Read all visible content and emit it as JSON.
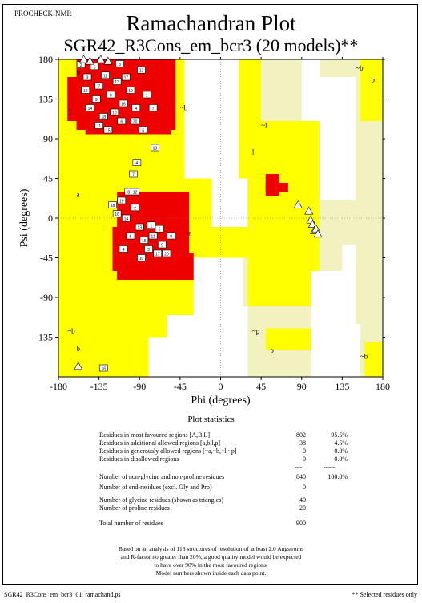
{
  "header": {
    "program": "PROCHECK-NMR",
    "title": "Ramachandran Plot",
    "subtitle": "SGR42_R3Cons_em_bcr3 (20 models)**"
  },
  "chart_data": {
    "type": "scatter",
    "xlabel": "Phi (degrees)",
    "ylabel": "Psi (degrees)",
    "xlim": [
      -180,
      180
    ],
    "ylim": [
      -180,
      180
    ],
    "xticks": [
      "-180",
      "-135",
      "-90",
      "-45",
      "0",
      "45",
      "90",
      "135",
      "180"
    ],
    "yticks": [
      "180",
      "135",
      "90",
      "45",
      "0",
      "-45",
      "-90",
      "-135"
    ],
    "region_labels": [
      {
        "text": "b",
        "phi": -160,
        "psi": 165
      },
      {
        "text": "l",
        "phi": -168,
        "psi": 120
      },
      {
        "text": "~b",
        "phi": -45,
        "psi": 125
      },
      {
        "text": "a",
        "phi": -160,
        "psi": 27
      },
      {
        "text": "~a",
        "phi": -40,
        "psi": -17
      },
      {
        "text": "~l",
        "phi": 45,
        "psi": 105
      },
      {
        "text": "l",
        "phi": 35,
        "psi": 75
      },
      {
        "text": "~b",
        "phi": -170,
        "psi": -128
      },
      {
        "text": "b",
        "phi": -160,
        "psi": -148
      },
      {
        "text": "~p",
        "phi": 35,
        "psi": -128
      },
      {
        "text": "p",
        "phi": 55,
        "psi": -150
      },
      {
        "text": "~b",
        "phi": 150,
        "psi": 170
      },
      {
        "text": "b",
        "phi": 167,
        "psi": 157
      },
      {
        "text": "~b",
        "phi": 155,
        "psi": -157
      }
    ],
    "regions": {
      "generous": [
        [
          -180,
          180,
          -30,
          180
        ],
        [
          -180,
          -70,
          -30,
          -180
        ],
        [
          -180,
          -100,
          -160,
          -180
        ],
        [
          150,
          180,
          -180,
          180
        ],
        [
          25,
          135,
          -180,
          180
        ],
        [
          0,
          25,
          -30,
          30
        ],
        [
          -30,
          0,
          -45,
          45
        ],
        [
          20,
          90,
          -100,
          -180
        ],
        [
          130,
          150,
          -100,
          -160
        ]
      ],
      "allowed": [
        [
          -180,
          45,
          -45,
          180
        ],
        [
          -180,
          -30,
          -180,
          45
        ],
        [
          -180,
          -55,
          -180,
          -110
        ],
        [
          -155,
          -90,
          -125,
          -180
        ],
        [
          30,
          110,
          -100,
          110
        ],
        [
          50,
          100,
          -125,
          -150
        ],
        [
          155,
          180,
          110,
          180
        ],
        [
          160,
          180,
          -140,
          -180
        ]
      ],
      "disallowed": [
        [
          -40,
          20,
          45,
          180
        ],
        [
          -10,
          30,
          -10,
          45
        ],
        [
          -20,
          30,
          -100,
          -180
        ],
        [
          -60,
          -20,
          -110,
          -180
        ],
        [
          100,
          150,
          -60,
          -180
        ],
        [
          -80,
          -60,
          -180,
          -135
        ],
        [
          110,
          150,
          20,
          160
        ],
        [
          130,
          155,
          -180,
          -120
        ],
        [
          90,
          110,
          110,
          180
        ],
        [
          -40,
          -20,
          180,
          60
        ]
      ],
      "favoured": [
        [
          -160,
          -50,
          180,
          100
        ],
        [
          -170,
          -60,
          160,
          110
        ],
        [
          -150,
          -55,
          140,
          95
        ],
        [
          -115,
          -35,
          30,
          -70
        ],
        [
          -100,
          -40,
          10,
          -40
        ],
        [
          -120,
          -60,
          -10,
          -60
        ],
        [
          -80,
          -30,
          -40,
          -70
        ],
        [
          50,
          65,
          50,
          25
        ],
        [
          50,
          75,
          40,
          30
        ]
      ]
    },
    "points": [
      {
        "phi": -155,
        "psi": 174,
        "model": "2"
      },
      {
        "phi": -148,
        "psi": 160,
        "model": "3"
      },
      {
        "phi": -140,
        "psi": 172,
        "model": "5"
      },
      {
        "phi": -135,
        "psi": 150,
        "model": "7"
      },
      {
        "phi": -128,
        "psi": 162,
        "model": "11"
      },
      {
        "phi": -122,
        "psi": 140,
        "model": "8"
      },
      {
        "phi": -115,
        "psi": 155,
        "model": "13"
      },
      {
        "phi": -108,
        "psi": 130,
        "model": "16"
      },
      {
        "phi": -100,
        "psi": 145,
        "model": "19"
      },
      {
        "phi": -94,
        "psi": 125,
        "model": "4"
      },
      {
        "phi": -88,
        "psi": 168,
        "model": "12"
      },
      {
        "phi": -145,
        "psi": 125,
        "model": "14"
      },
      {
        "phi": -138,
        "psi": 135,
        "model": "9"
      },
      {
        "phi": -130,
        "psi": 115,
        "model": "18"
      },
      {
        "phi": -118,
        "psi": 120,
        "model": "10"
      },
      {
        "phi": -110,
        "psi": 110,
        "model": "6"
      },
      {
        "phi": -125,
        "psi": 100,
        "model": "15"
      },
      {
        "phi": -105,
        "psi": 160,
        "model": "17"
      },
      {
        "phi": -95,
        "psi": 110,
        "model": "20"
      },
      {
        "phi": -82,
        "psi": 140,
        "model": "1"
      },
      {
        "phi": -150,
        "psi": 145,
        "model": "12"
      },
      {
        "phi": -112,
        "psi": 175,
        "model": "3"
      },
      {
        "phi": -75,
        "psi": 125,
        "model": "7"
      },
      {
        "phi": -135,
        "psi": 105,
        "model": "11"
      },
      {
        "phi": -86,
        "psi": 100,
        "model": "5"
      },
      {
        "phi": -73,
        "psi": 80,
        "model": "18"
      },
      {
        "phi": -93,
        "psi": 63,
        "model": "4"
      },
      {
        "phi": -97,
        "psi": 50,
        "model": "7"
      },
      {
        "phi": -102,
        "psi": 30,
        "model": "8"
      },
      {
        "phi": -110,
        "psi": 20,
        "model": "19"
      },
      {
        "phi": -115,
        "psi": 5,
        "model": "16"
      },
      {
        "phi": -105,
        "psi": 0,
        "model": "14"
      },
      {
        "phi": -95,
        "psi": 12,
        "model": "2"
      },
      {
        "phi": -90,
        "psi": -10,
        "model": "13"
      },
      {
        "phi": -100,
        "psi": -20,
        "model": "6"
      },
      {
        "phi": -85,
        "psi": -25,
        "model": "15"
      },
      {
        "phi": -75,
        "psi": -20,
        "model": "11"
      },
      {
        "phi": -80,
        "psi": -35,
        "model": "3"
      },
      {
        "phi": -70,
        "psi": -40,
        "model": "17"
      },
      {
        "phi": -65,
        "psi": -30,
        "model": "9"
      },
      {
        "phi": -60,
        "psi": -40,
        "model": "20"
      },
      {
        "phi": -88,
        "psi": -45,
        "model": "10"
      },
      {
        "phi": -77,
        "psi": -8,
        "model": "1"
      },
      {
        "phi": -68,
        "psi": -12,
        "model": "5"
      },
      {
        "phi": -95,
        "psi": 30,
        "model": "12"
      },
      {
        "phi": -120,
        "psi": 15,
        "model": "18"
      },
      {
        "phi": -108,
        "psi": -35,
        "model": "4"
      },
      {
        "phi": -55,
        "psi": -20,
        "model": "8"
      },
      {
        "phi": -130,
        "psi": -170,
        "model": "16"
      }
    ],
    "glycine_points": [
      {
        "phi": -152,
        "psi": 180
      },
      {
        "phi": -145,
        "psi": 178
      },
      {
        "phi": -133,
        "psi": 180
      },
      {
        "phi": -125,
        "psi": 178
      },
      {
        "phi": -158,
        "psi": -168
      },
      {
        "phi": 86,
        "psi": 15
      },
      {
        "phi": 98,
        "psi": 8
      },
      {
        "phi": 100,
        "psi": -2
      },
      {
        "phi": 102,
        "psi": -7
      },
      {
        "phi": 104,
        "psi": -14
      },
      {
        "phi": 106,
        "psi": -12
      },
      {
        "phi": 108,
        "psi": -18
      }
    ]
  },
  "stats": {
    "title": "Plot statistics",
    "rows": [
      {
        "label": "Residues in most favoured regions  [A,B,L]",
        "count": "802",
        "pct": "95.5%"
      },
      {
        "label": "Residues in additional allowed regions  [a,b,l,p]",
        "count": "38",
        "pct": "4.5%"
      },
      {
        "label": "Residues in generously allowed regions  [~a,~b,~l,~p]",
        "count": "0",
        "pct": "0.0%"
      },
      {
        "label": "Residues in disallowed regions",
        "count": "0",
        "pct": "0.0%"
      },
      {
        "label": "Number of non-glycine and non-proline residues",
        "count": "840",
        "pct": "100.0%"
      },
      {
        "label": "Number of end-residues (excl. Gly and Pro)",
        "count": "0",
        "pct": ""
      },
      {
        "label": "Number of glycine residues (shown as triangles)",
        "count": "40",
        "pct": ""
      },
      {
        "label": "Number of proline residues",
        "count": "20",
        "pct": ""
      },
      {
        "label": "Total number of residues",
        "count": "900",
        "pct": ""
      }
    ],
    "separator_count": "----",
    "separator_pct": "------",
    "separator_total": "----"
  },
  "footnote": {
    "lines": [
      "Based on an analysis of 118 structures of resolution of at least 2.0 Angstroms",
      "and R-factor no greater than 20%, a good quality model would be expected",
      "to have over 90% in the most favoured regions.",
      "Model numbers shown inside each data point."
    ]
  },
  "footer": {
    "filename": "SGR42_R3Cons_em_bcr3_01_ramachand.ps",
    "note": "** Selected residues only"
  },
  "colors": {
    "favoured": "#ee0000",
    "allowed": "#ffff00",
    "generous": "#f2f2c0",
    "disallowed": "#ffffff"
  }
}
